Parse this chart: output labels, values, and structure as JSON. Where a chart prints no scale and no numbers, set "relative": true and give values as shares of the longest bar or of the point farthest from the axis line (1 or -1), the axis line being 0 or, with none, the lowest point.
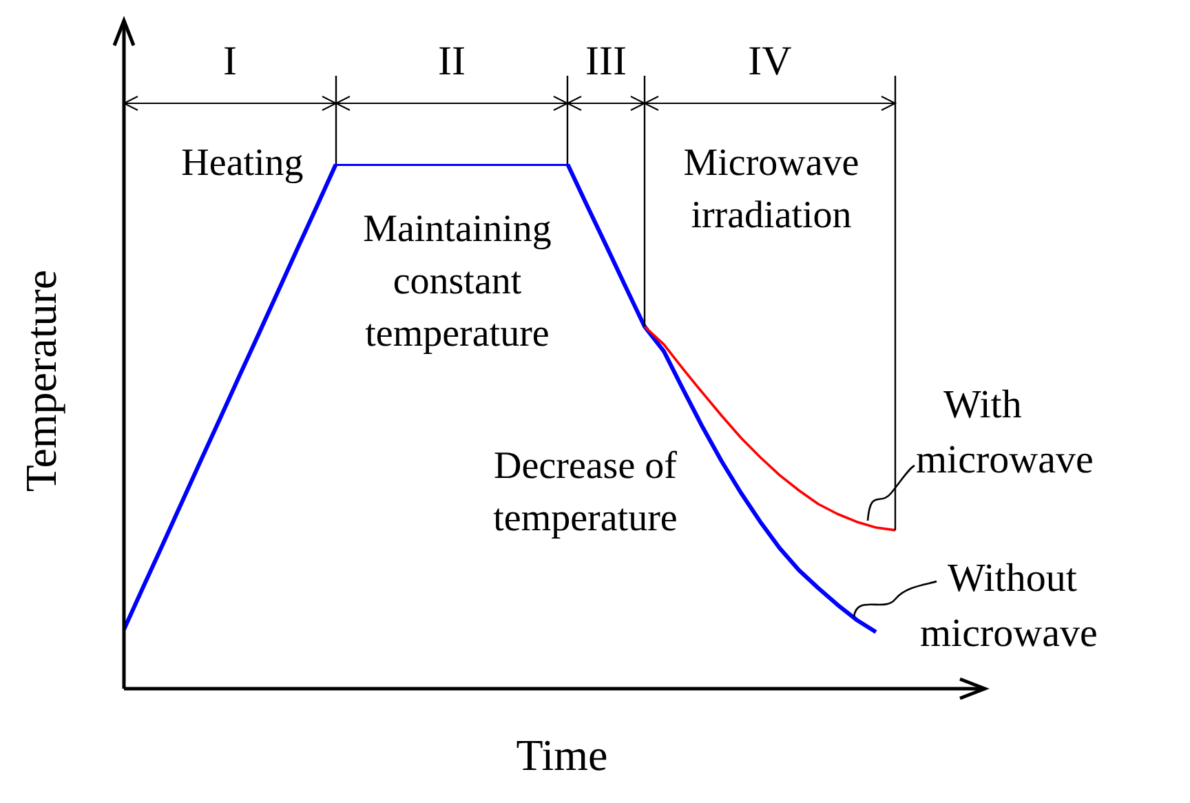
{
  "chart_data": {
    "type": "line",
    "relative": true,
    "xlabel": "Time",
    "ylabel": "Temperature",
    "legend": false,
    "grid": false,
    "marker": "none",
    "line_style": "solid",
    "categories": [
      null,
      null,
      null,
      null,
      null,
      null,
      null,
      null,
      null,
      null,
      null,
      null,
      null,
      null,
      null,
      null,
      null,
      null,
      null,
      null,
      null,
      null,
      null,
      null,
      null,
      null,
      null,
      null,
      null,
      null,
      null,
      null,
      null,
      null,
      null,
      null,
      null,
      null,
      null,
      null,
      null
    ],
    "series": [
      {
        "name": "Without microwave",
        "color": "#0000ff",
        "values": [
          0.113,
          0.194,
          0.274,
          0.355,
          0.436,
          0.516,
          0.597,
          0.677,
          0.758,
          0.839,
          0.919,
          1,
          1,
          1,
          1,
          1,
          1,
          1,
          1,
          1,
          1,
          1,
          1,
          1,
          0.922,
          0.845,
          0.767,
          0.69,
          0.643,
          0.57,
          0.499,
          0.433,
          0.373,
          0.318,
          0.268,
          0.226,
          0.192,
          0.16,
          0.131,
          0.108,
          null
        ]
      },
      {
        "name": "With microwave",
        "color": "#ff0000",
        "values": [
          null,
          null,
          null,
          null,
          null,
          null,
          null,
          null,
          null,
          null,
          null,
          null,
          null,
          null,
          null,
          null,
          null,
          null,
          null,
          null,
          null,
          null,
          null,
          null,
          null,
          null,
          null,
          0.69,
          0.656,
          0.609,
          0.564,
          0.52,
          0.478,
          0.441,
          0.407,
          0.378,
          0.352,
          0.333,
          0.318,
          0.307,
          0.302
        ]
      }
    ],
    "annotations": [
      "I",
      "II",
      "III",
      "IV",
      "Heating",
      "Maintaining\nconstant\ntemperature",
      "Microwave\nirradiation",
      "Decrease of\ntemperature"
    ]
  }
}
